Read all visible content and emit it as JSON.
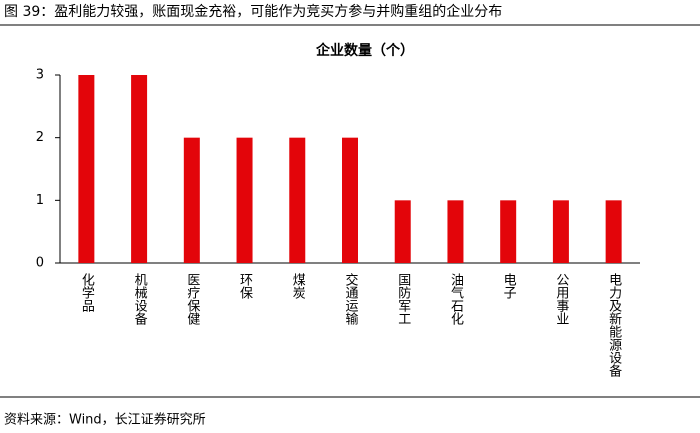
{
  "chart_data": {
    "type": "bar",
    "caption": "图 39：盈利能力较强，账面现金充裕，可能作为竞买方参与并购重组的企业分布",
    "title": "企业数量（个）",
    "source": "资料来源：Wind，长江证券研究所",
    "categories": [
      "化学品",
      "机械设备",
      "医疗保健",
      "环保",
      "煤炭",
      "交通运输",
      "国防军工",
      "油气石化",
      "电子",
      "公用事业",
      "电力及新能源设备"
    ],
    "values": [
      3,
      3,
      2,
      2,
      2,
      2,
      1,
      1,
      1,
      1,
      1
    ],
    "color": "#e3050a",
    "ylim": [
      0,
      3
    ],
    "yticks": [
      0,
      1,
      2,
      3
    ],
    "grid": false
  }
}
